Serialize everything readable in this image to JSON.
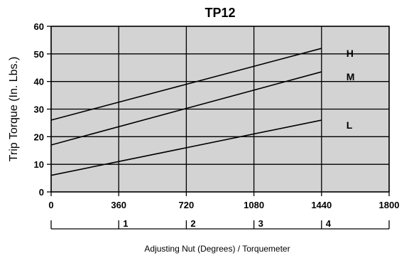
{
  "chart_data": {
    "type": "line",
    "title": "TP12",
    "xlabel": "Adjusting Nut (Degrees) / Torquemeter",
    "ylabel": "Trip Torque (In. Lbs.)",
    "xlim": [
      0,
      1800
    ],
    "ylim": [
      0,
      60
    ],
    "x_ticks": [
      "0",
      "360",
      "720",
      "1080",
      "1440",
      "1800"
    ],
    "y_ticks": [
      "0",
      "10",
      "20",
      "30",
      "40",
      "50",
      "60"
    ],
    "torquemeter_ticks": [
      "1",
      "2",
      "3",
      "4"
    ],
    "grid": true,
    "plot_background": "#d3d3d3",
    "series": [
      {
        "name": "H",
        "x": [
          0,
          1440
        ],
        "y": [
          26,
          52
        ]
      },
      {
        "name": "M",
        "x": [
          0,
          1440
        ],
        "y": [
          17,
          43.5
        ]
      },
      {
        "name": "L",
        "x": [
          0,
          1440
        ],
        "y": [
          6,
          26
        ]
      }
    ]
  }
}
